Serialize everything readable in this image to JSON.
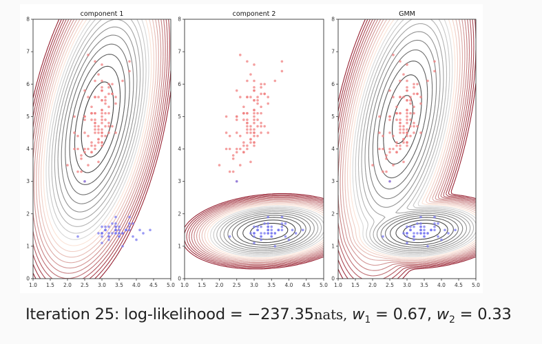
{
  "caption": {
    "iteration_label": "Iteration 25:",
    "ll_label": "log-likelihood",
    "eq": "=",
    "ll_value": "−237.35",
    "ll_unit": "nats,",
    "w1_sym": "w",
    "w1_sub": "1",
    "w1_value": "0.67,",
    "w2_sym": "w",
    "w2_sub": "2",
    "w2_value": "0.33",
    "iteration": 25,
    "log_likelihood": -237.35,
    "weights": [
      0.67,
      0.33
    ]
  },
  "colors": {
    "red_points": "#f08080",
    "red_points_dense": "#e83a3a",
    "blue_points": "#7878f0",
    "blue_points_dense": "#3434e8",
    "axis": "#333333",
    "contour_dark": "#2b2b2b",
    "contour_red_high": "#8b0a1e",
    "page_bg": "#fafafa"
  },
  "chart_data": [
    {
      "type": "scatter",
      "title": "component 1",
      "xlabel": "",
      "ylabel": "",
      "xlim": [
        1.0,
        5.0
      ],
      "ylim": [
        0,
        8
      ],
      "xticks": [
        "1.0",
        "1.5",
        "2.0",
        "2.5",
        "3.0",
        "3.5",
        "4.0",
        "4.5",
        "5.0"
      ],
      "yticks": [
        "0",
        "1",
        "2",
        "3",
        "4",
        "5",
        "6",
        "7",
        "8"
      ],
      "grid": false,
      "contours": "component1",
      "points": "shared"
    },
    {
      "type": "scatter",
      "title": "component 2",
      "xlabel": "",
      "ylabel": "",
      "xlim": [
        1.0,
        5.0
      ],
      "ylim": [
        0,
        8
      ],
      "xticks": [
        "1.0",
        "1.5",
        "2.0",
        "2.5",
        "3.0",
        "3.5",
        "4.0",
        "4.5",
        "5.0"
      ],
      "yticks": [
        "0",
        "1",
        "2",
        "3",
        "4",
        "5",
        "6",
        "7",
        "8"
      ],
      "grid": false,
      "contours": "component2",
      "points": "shared"
    },
    {
      "type": "scatter",
      "title": "GMM",
      "xlabel": "",
      "ylabel": "",
      "xlim": [
        1.0,
        5.0
      ],
      "ylim": [
        0,
        8
      ],
      "xticks": [
        "1.0",
        "1.5",
        "2.0",
        "2.5",
        "3.0",
        "3.5",
        "4.0",
        "4.5",
        "5.0"
      ],
      "yticks": [
        "0",
        "1",
        "2",
        "3",
        "4",
        "5",
        "6",
        "7",
        "8"
      ],
      "grid": false,
      "contours": "mixture",
      "points": "shared"
    }
  ],
  "components": {
    "component1": {
      "weight": 0.67,
      "mean": [
        2.87,
        4.91
      ],
      "cov": [
        [
          0.11,
          0.12
        ],
        [
          0.12,
          0.68
        ]
      ]
    },
    "component2": {
      "weight": 0.33,
      "mean": [
        3.43,
        1.46
      ],
      "cov": [
        [
          0.14,
          0.01
        ],
        [
          0.01,
          0.03
        ]
      ]
    }
  },
  "points": {
    "red": [
      [
        3.2,
        4.7
      ],
      [
        3.2,
        4.5
      ],
      [
        3.1,
        4.9
      ],
      [
        2.3,
        4.0
      ],
      [
        2.8,
        4.6
      ],
      [
        2.8,
        4.5
      ],
      [
        3.3,
        4.7
      ],
      [
        2.4,
        3.3
      ],
      [
        2.9,
        4.6
      ],
      [
        2.7,
        3.9
      ],
      [
        2.0,
        3.5
      ],
      [
        3.0,
        4.2
      ],
      [
        2.2,
        4.0
      ],
      [
        2.9,
        4.7
      ],
      [
        2.9,
        3.6
      ],
      [
        3.1,
        4.4
      ],
      [
        3.0,
        4.5
      ],
      [
        2.7,
        4.1
      ],
      [
        2.2,
        4.5
      ],
      [
        2.5,
        3.9
      ],
      [
        3.2,
        4.8
      ],
      [
        2.8,
        4.0
      ],
      [
        2.5,
        4.9
      ],
      [
        2.8,
        4.7
      ],
      [
        2.9,
        4.3
      ],
      [
        3.0,
        4.4
      ],
      [
        2.8,
        4.8
      ],
      [
        3.0,
        5.0
      ],
      [
        2.9,
        4.5
      ],
      [
        2.6,
        3.5
      ],
      [
        2.4,
        3.8
      ],
      [
        2.4,
        3.7
      ],
      [
        2.7,
        3.9
      ],
      [
        2.7,
        5.1
      ],
      [
        3.0,
        4.5
      ],
      [
        3.4,
        4.5
      ],
      [
        3.1,
        4.7
      ],
      [
        2.3,
        4.4
      ],
      [
        3.0,
        4.1
      ],
      [
        2.5,
        4.0
      ],
      [
        2.6,
        4.4
      ],
      [
        3.0,
        4.6
      ],
      [
        2.6,
        4.0
      ],
      [
        2.3,
        3.3
      ],
      [
        2.7,
        4.2
      ],
      [
        3.0,
        4.2
      ],
      [
        2.9,
        4.2
      ],
      [
        2.9,
        4.3
      ],
      [
        2.5,
        3.0
      ],
      [
        2.8,
        4.1
      ],
      [
        3.3,
        6.0
      ],
      [
        2.7,
        5.1
      ],
      [
        3.0,
        5.9
      ],
      [
        2.9,
        5.6
      ],
      [
        3.0,
        5.8
      ],
      [
        3.0,
        6.6
      ],
      [
        2.5,
        4.5
      ],
      [
        2.9,
        6.3
      ],
      [
        2.5,
        5.8
      ],
      [
        3.6,
        6.1
      ],
      [
        3.2,
        5.1
      ],
      [
        2.7,
        5.3
      ],
      [
        3.0,
        5.5
      ],
      [
        2.5,
        5.0
      ],
      [
        2.8,
        5.1
      ],
      [
        3.2,
        5.3
      ],
      [
        3.0,
        5.5
      ],
      [
        3.8,
        6.7
      ],
      [
        2.6,
        6.9
      ],
      [
        2.2,
        5.0
      ],
      [
        3.2,
        5.7
      ],
      [
        2.8,
        4.9
      ],
      [
        2.8,
        6.7
      ],
      [
        2.7,
        4.9
      ],
      [
        3.3,
        5.7
      ],
      [
        3.2,
        6.0
      ],
      [
        2.8,
        4.8
      ],
      [
        3.0,
        4.9
      ],
      [
        2.8,
        5.6
      ],
      [
        3.0,
        5.8
      ],
      [
        2.8,
        6.1
      ],
      [
        3.8,
        6.4
      ],
      [
        2.8,
        5.6
      ],
      [
        2.8,
        5.1
      ],
      [
        2.6,
        5.6
      ],
      [
        3.0,
        6.1
      ],
      [
        3.4,
        5.6
      ],
      [
        3.1,
        5.5
      ],
      [
        3.0,
        4.8
      ],
      [
        3.1,
        5.4
      ],
      [
        3.1,
        5.6
      ],
      [
        3.1,
        5.1
      ],
      [
        2.7,
        5.1
      ],
      [
        3.2,
        5.9
      ],
      [
        3.3,
        5.7
      ],
      [
        3.0,
        5.2
      ],
      [
        2.5,
        5.0
      ],
      [
        3.0,
        5.2
      ],
      [
        3.4,
        5.4
      ],
      [
        3.0,
        5.1
      ]
    ],
    "blue": [
      [
        3.5,
        1.4
      ],
      [
        3.0,
        1.4
      ],
      [
        3.2,
        1.3
      ],
      [
        3.1,
        1.5
      ],
      [
        3.6,
        1.4
      ],
      [
        3.9,
        1.7
      ],
      [
        3.4,
        1.4
      ],
      [
        3.4,
        1.5
      ],
      [
        2.9,
        1.4
      ],
      [
        3.1,
        1.5
      ],
      [
        3.7,
        1.5
      ],
      [
        3.4,
        1.6
      ],
      [
        3.0,
        1.4
      ],
      [
        3.0,
        1.1
      ],
      [
        4.0,
        1.2
      ],
      [
        4.4,
        1.5
      ],
      [
        3.9,
        1.3
      ],
      [
        3.5,
        1.4
      ],
      [
        3.8,
        1.7
      ],
      [
        3.8,
        1.5
      ],
      [
        3.4,
        1.7
      ],
      [
        3.7,
        1.5
      ],
      [
        3.6,
        1.0
      ],
      [
        3.3,
        1.7
      ],
      [
        3.4,
        1.9
      ],
      [
        3.0,
        1.6
      ],
      [
        3.4,
        1.6
      ],
      [
        3.5,
        1.5
      ],
      [
        3.4,
        1.4
      ],
      [
        3.2,
        1.6
      ],
      [
        3.1,
        1.6
      ],
      [
        3.4,
        1.5
      ],
      [
        4.1,
        1.5
      ],
      [
        4.2,
        1.4
      ],
      [
        3.1,
        1.5
      ],
      [
        3.2,
        1.2
      ],
      [
        3.5,
        1.3
      ],
      [
        3.6,
        1.4
      ],
      [
        3.0,
        1.3
      ],
      [
        3.4,
        1.5
      ],
      [
        3.5,
        1.3
      ],
      [
        2.3,
        1.3
      ],
      [
        3.2,
        1.3
      ],
      [
        3.5,
        1.6
      ],
      [
        3.8,
        1.9
      ],
      [
        3.0,
        1.4
      ],
      [
        3.8,
        1.6
      ],
      [
        3.2,
        1.4
      ],
      [
        3.7,
        1.5
      ],
      [
        3.3,
        1.4
      ],
      [
        2.5,
        3.0
      ]
    ]
  }
}
